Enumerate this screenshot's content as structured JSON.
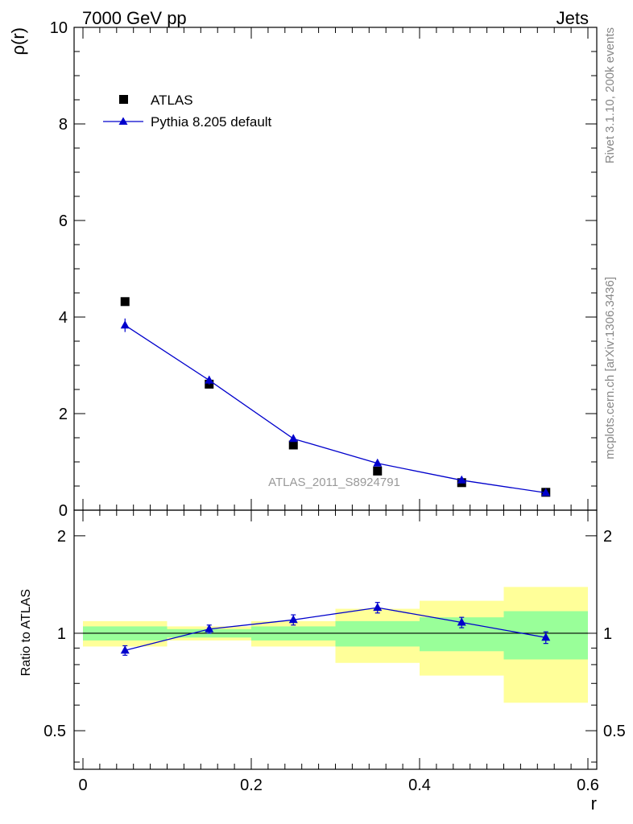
{
  "header": {
    "left": "7000 GeV pp",
    "right": "Jets"
  },
  "side_labels": {
    "rivet": "Rivet 3.1.10,  200k events",
    "mcplots": "mcplots.cern.ch [arXiv:1306.3436]"
  },
  "analysis_id": "ATLAS_2011_S8924791",
  "colors": {
    "data": "#000000",
    "mc": "#0000cc",
    "band_inner": "#99ff99",
    "band_outer": "#ffff99"
  },
  "legend": {
    "data_label": "ATLAS",
    "mc_label": "Pythia 8.205 default"
  },
  "chart_data": [
    {
      "type": "scatter",
      "panel": "main",
      "ylabel": "ρ(r)",
      "xlabel": "r",
      "xlim": [
        0,
        0.6
      ],
      "ylim": [
        0,
        10
      ],
      "y_ticks": [
        "0",
        "2",
        "4",
        "6",
        "8",
        "10"
      ],
      "series": [
        {
          "name": "ATLAS",
          "marker": "square",
          "x": [
            0.05,
            0.15,
            0.25,
            0.35,
            0.45,
            0.55
          ],
          "values": [
            4.32,
            2.61,
            1.35,
            0.81,
            0.57,
            0.37
          ]
        },
        {
          "name": "Pythia 8.205 default",
          "marker": "triangle",
          "line": true,
          "x": [
            0.05,
            0.15,
            0.25,
            0.35,
            0.45,
            0.55
          ],
          "values": [
            3.83,
            2.69,
            1.48,
            0.97,
            0.62,
            0.36
          ],
          "errors": [
            0.14,
            0.09,
            0.05,
            0.04,
            0.03,
            0.02
          ]
        }
      ]
    },
    {
      "type": "line",
      "panel": "ratio",
      "ylabel": "Ratio to ATLAS",
      "xlabel": "r",
      "xlim": [
        0,
        0.6
      ],
      "ylim": [
        0.38,
        2.4
      ],
      "y_scale": "log",
      "x_ticks": [
        "0",
        "0.2",
        "0.4",
        "0.6"
      ],
      "y_ticks": [
        "0.5",
        "1",
        "2"
      ],
      "bands": {
        "bin_edges": [
          0.0,
          0.1,
          0.2,
          0.3,
          0.4,
          0.5,
          0.6
        ],
        "inner_low": [
          0.95,
          0.97,
          0.95,
          0.91,
          0.88,
          0.83
        ],
        "inner_high": [
          1.05,
          1.03,
          1.05,
          1.09,
          1.12,
          1.17
        ],
        "outer_low": [
          0.91,
          0.95,
          0.91,
          0.81,
          0.74,
          0.61
        ],
        "outer_high": [
          1.09,
          1.05,
          1.09,
          1.19,
          1.26,
          1.39
        ]
      },
      "series": [
        {
          "name": "Pythia 8.205 default / ATLAS",
          "x": [
            0.05,
            0.15,
            0.25,
            0.35,
            0.45,
            0.55
          ],
          "values": [
            0.885,
            1.03,
            1.1,
            1.2,
            1.08,
            0.97
          ],
          "errors": [
            0.03,
            0.03,
            0.04,
            0.045,
            0.04,
            0.04
          ]
        }
      ]
    }
  ]
}
